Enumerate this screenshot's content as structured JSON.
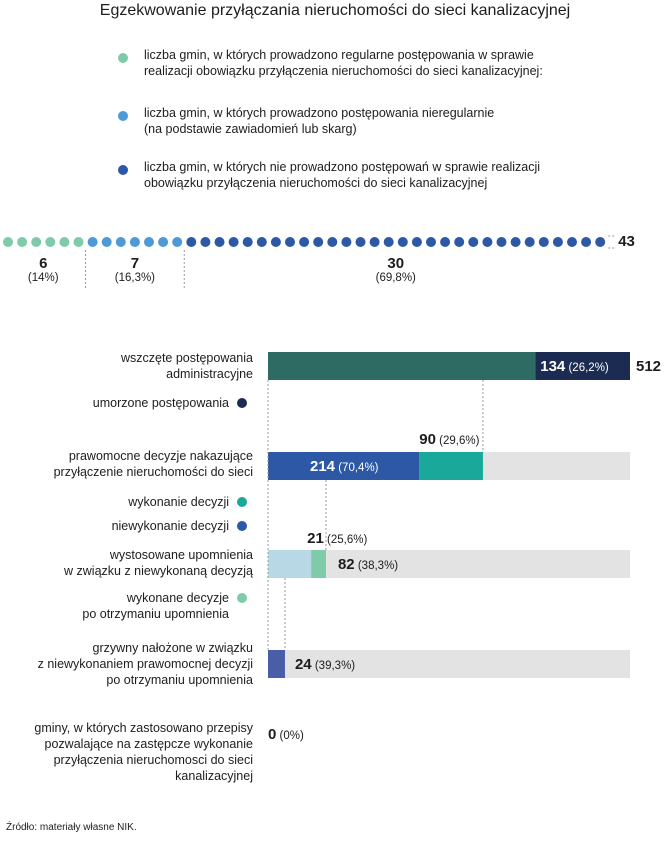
{
  "title": "Egzekwowanie przyłączania nieruchomości do sieci kanalizacyjnej",
  "legend": [
    {
      "text": "liczba gmin, w których prowadzono regularne postępowania w sprawie\nrealizacji obowiązku przyłączenia nieruchomości do sieci kanalizacyjnej:",
      "color": "#7fcba9"
    },
    {
      "text": "liczba gmin, w których prowadzono postępowania nieregularnie\n(na podstawie zawiadomień lub skarg)",
      "color": "#4d9ad6"
    },
    {
      "text": "liczba gmin, w których nie prowadzono postępowań w sprawie realizacji\nobowiązku przyłączenia nieruchomości do sieci kanalizacyjnej",
      "color": "#2d58a6"
    }
  ],
  "chart_data": [
    {
      "type": "dot",
      "total": 43,
      "total_label": "43",
      "groups": [
        {
          "value": 6,
          "label": "6",
          "pct": "(14%)",
          "color": "#7fcba9"
        },
        {
          "value": 7,
          "label": "7",
          "pct": "(16,3%)",
          "color": "#4d9ad6"
        },
        {
          "value": 30,
          "label": "30",
          "pct": "(69,8%)",
          "color": "#2d58a6"
        }
      ]
    },
    {
      "type": "bar",
      "max": 512,
      "rows": [
        {
          "label": "wszczęte postępowania\nadministracyjne",
          "total": 512,
          "total_label": "512",
          "segments": [
            {
              "value": 378,
              "color": "#2d6b63"
            },
            {
              "value": 134,
              "color": "#1b2b52",
              "label": "134",
              "pct": "(26,2%)"
            }
          ]
        },
        {
          "label": "prawomocne decyzje nakazujące\nprzyłączenie nieruchomości do sieci",
          "total": 304,
          "segments": [
            {
              "value": 214,
              "color": "#2d58a6",
              "label": "214",
              "pct": "(70,4%)"
            },
            {
              "value": 90,
              "color": "#1aa89a",
              "label": "90",
              "pct": "(29,6%)"
            }
          ]
        },
        {
          "label": "wystosowane upomnienia\nw związku z niewykonaną decyzją",
          "total": 82,
          "segments": [
            {
              "value": 61,
              "color": "#b8d8e6"
            },
            {
              "value": 21,
              "color": "#7fcba9",
              "label": "21",
              "pct": "(25,6%)"
            }
          ],
          "total_value": {
            "label": "82",
            "pct": "(38,3%)"
          }
        },
        {
          "label": "grzywny nałożone w związku\nz niewykonaniem prawomocnej decyzji\npo otrzymaniu upomnienia",
          "total": 24,
          "segments": [
            {
              "value": 24,
              "color": "#4a5ea8",
              "label": "24",
              "pct": "(39,3%)"
            }
          ]
        },
        {
          "label": "gminy, w których zastosowano przepisy\npozwalające na zastępcze wykonanie\nprzyłączenia nieruchomosci do sieci\nkanalizacyjnej",
          "total": 0,
          "segments": [],
          "total_value": {
            "label": "0",
            "pct": "(0%)"
          }
        }
      ],
      "sub_labels": [
        {
          "text": "umorzone postępowania",
          "color": "#1b2b52"
        },
        {
          "text": "wykonanie decyzji",
          "color": "#1aa89a"
        },
        {
          "text": "niewykonanie decyzji",
          "color": "#2d58a6"
        },
        {
          "text": "wykonane decyzje\npo otrzymaniu upomnienia",
          "color": "#7fcba9"
        }
      ]
    }
  ],
  "colors": {
    "track": "#e3e3e3",
    "guide": "#9a9a9a"
  },
  "source": "Źródło: materiały własne NIK."
}
